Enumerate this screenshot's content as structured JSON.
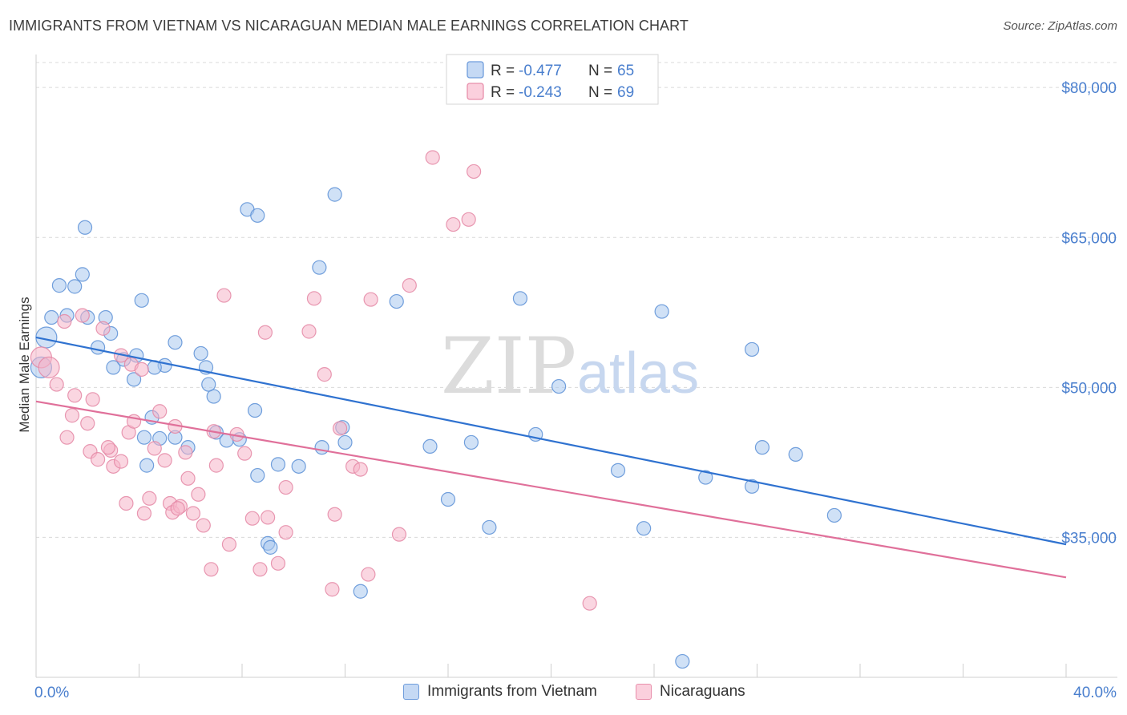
{
  "title": "IMMIGRANTS FROM VIETNAM VS NICARAGUAN MEDIAN MALE EARNINGS CORRELATION CHART",
  "source": "Source: ZipAtlas.com",
  "watermark": {
    "zip": "ZIP",
    "atlas": "atlas"
  },
  "colors": {
    "blue_fill": "#a9c8ee",
    "blue_stroke": "#5b8fd6",
    "blue_line": "#2f72d0",
    "pink_fill": "#f5b5c8",
    "pink_stroke": "#e487a5",
    "pink_line": "#e0709a",
    "axis_text": "#4a7fce",
    "grid": "#d9d9d9"
  },
  "chart_data": {
    "type": "scatter",
    "title": "IMMIGRANTS FROM VIETNAM VS NICARAGUAN MEDIAN MALE EARNINGS CORRELATION CHART",
    "xlabel": "",
    "ylabel": "Median Male Earnings",
    "xlim": [
      0,
      40
    ],
    "ylim": [
      21000,
      82500
    ],
    "x_tick_labels": [
      "0.0%",
      "40.0%"
    ],
    "y_ticks": [
      35000,
      50000,
      65000,
      80000
    ],
    "y_tick_labels": [
      "$35,000",
      "$50,000",
      "$65,000",
      "$80,000"
    ],
    "legend": {
      "rows": [
        {
          "r_label": "R = ",
          "r_value": "-0.477",
          "n_label": "N = ",
          "n_value": "65"
        },
        {
          "r_label": "R = ",
          "r_value": "-0.243",
          "n_label": "N = ",
          "n_value": "69"
        }
      ]
    },
    "series": [
      {
        "name": "Immigrants from Vietnam",
        "color": "blue",
        "trend": {
          "x": [
            0,
            40
          ],
          "y": [
            55000,
            34300
          ]
        },
        "points": [
          [
            0.2,
            52000
          ],
          [
            0.4,
            55000
          ],
          [
            0.6,
            57000
          ],
          [
            0.9,
            60200
          ],
          [
            1.2,
            57200
          ],
          [
            1.5,
            60100
          ],
          [
            1.8,
            61300
          ],
          [
            2.0,
            57000
          ],
          [
            1.9,
            66000
          ],
          [
            2.7,
            57000
          ],
          [
            2.4,
            54000
          ],
          [
            3.0,
            52000
          ],
          [
            2.9,
            55400
          ],
          [
            3.8,
            50800
          ],
          [
            3.9,
            53200
          ],
          [
            4.1,
            58700
          ],
          [
            4.2,
            45000
          ],
          [
            4.3,
            42200
          ],
          [
            3.4,
            52800
          ],
          [
            4.5,
            47000
          ],
          [
            4.8,
            44900
          ],
          [
            5.0,
            52200
          ],
          [
            5.4,
            54500
          ],
          [
            5.4,
            45000
          ],
          [
            6.4,
            53400
          ],
          [
            6.6,
            52000
          ],
          [
            6.9,
            49100
          ],
          [
            7.0,
            45500
          ],
          [
            7.4,
            44700
          ],
          [
            7.9,
            44800
          ],
          [
            8.5,
            47700
          ],
          [
            8.6,
            41200
          ],
          [
            9.0,
            34400
          ],
          [
            9.1,
            34000
          ],
          [
            9.4,
            42300
          ],
          [
            10.2,
            42100
          ],
          [
            11.1,
            44000
          ],
          [
            11.9,
            46000
          ],
          [
            12.0,
            44500
          ],
          [
            12.6,
            29600
          ],
          [
            14.0,
            58600
          ],
          [
            15.3,
            44100
          ],
          [
            16.0,
            38800
          ],
          [
            16.9,
            44500
          ],
          [
            17.6,
            36000
          ],
          [
            18.8,
            58900
          ],
          [
            19.4,
            45300
          ],
          [
            20.3,
            50100
          ],
          [
            22.6,
            41700
          ],
          [
            23.6,
            35900
          ],
          [
            24.3,
            57600
          ],
          [
            26.0,
            41000
          ],
          [
            27.8,
            53800
          ],
          [
            27.8,
            40100
          ],
          [
            28.2,
            44000
          ],
          [
            29.5,
            43300
          ],
          [
            31.0,
            37200
          ],
          [
            25.1,
            22600
          ],
          [
            8.2,
            67800
          ],
          [
            8.6,
            67200
          ],
          [
            11.6,
            69300
          ],
          [
            11.0,
            62000
          ],
          [
            6.7,
            50300
          ],
          [
            5.9,
            44000
          ],
          [
            4.6,
            52000
          ]
        ]
      },
      {
        "name": "Nicaraguans",
        "color": "pink",
        "trend": {
          "x": [
            0,
            40
          ],
          "y": [
            48600,
            31000
          ]
        },
        "points": [
          [
            0.2,
            53000
          ],
          [
            0.5,
            52000
          ],
          [
            0.8,
            50300
          ],
          [
            1.1,
            56600
          ],
          [
            1.2,
            45000
          ],
          [
            1.4,
            47200
          ],
          [
            1.5,
            49200
          ],
          [
            1.8,
            57200
          ],
          [
            2.0,
            46400
          ],
          [
            2.1,
            43600
          ],
          [
            2.2,
            48800
          ],
          [
            2.4,
            42800
          ],
          [
            2.6,
            55900
          ],
          [
            2.9,
            43700
          ],
          [
            3.0,
            42100
          ],
          [
            3.3,
            53200
          ],
          [
            3.5,
            38400
          ],
          [
            3.6,
            45500
          ],
          [
            3.7,
            52300
          ],
          [
            3.8,
            46600
          ],
          [
            4.1,
            51800
          ],
          [
            4.2,
            37400
          ],
          [
            4.4,
            38900
          ],
          [
            4.6,
            43900
          ],
          [
            4.8,
            47600
          ],
          [
            5.0,
            42700
          ],
          [
            5.2,
            38400
          ],
          [
            5.3,
            37500
          ],
          [
            5.4,
            46100
          ],
          [
            5.6,
            38100
          ],
          [
            5.8,
            43500
          ],
          [
            5.9,
            40900
          ],
          [
            6.1,
            37400
          ],
          [
            6.3,
            39300
          ],
          [
            6.5,
            36200
          ],
          [
            6.8,
            31800
          ],
          [
            7.0,
            42200
          ],
          [
            7.3,
            59200
          ],
          [
            7.5,
            34300
          ],
          [
            7.8,
            45300
          ],
          [
            8.1,
            43400
          ],
          [
            8.4,
            36900
          ],
          [
            8.7,
            31800
          ],
          [
            8.9,
            55500
          ],
          [
            9.0,
            37000
          ],
          [
            9.4,
            32400
          ],
          [
            9.7,
            35500
          ],
          [
            10.6,
            55600
          ],
          [
            10.8,
            58900
          ],
          [
            11.2,
            51300
          ],
          [
            11.5,
            29800
          ],
          [
            11.6,
            37300
          ],
          [
            11.8,
            45900
          ],
          [
            12.3,
            42100
          ],
          [
            12.6,
            41800
          ],
          [
            12.9,
            31300
          ],
          [
            13.0,
            58800
          ],
          [
            14.1,
            35300
          ],
          [
            14.5,
            60200
          ],
          [
            15.4,
            73000
          ],
          [
            16.2,
            66300
          ],
          [
            16.8,
            66800
          ],
          [
            17.0,
            71600
          ],
          [
            21.5,
            28400
          ],
          [
            3.3,
            42600
          ],
          [
            2.8,
            44000
          ],
          [
            6.9,
            45600
          ],
          [
            9.7,
            40000
          ],
          [
            5.5,
            37900
          ]
        ]
      }
    ]
  }
}
